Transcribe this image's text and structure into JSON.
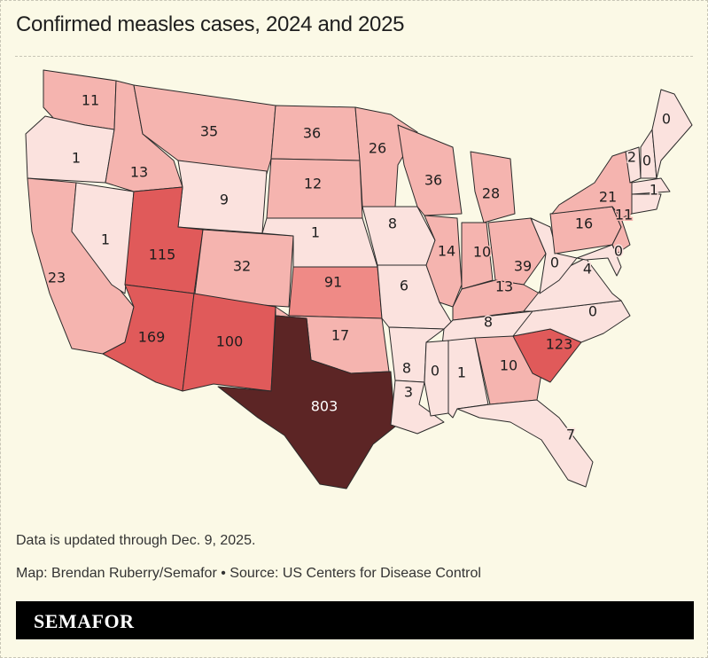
{
  "title": "Confirmed measles cases, 2024 and 2025",
  "note": "Data is updated through Dec. 9, 2025.",
  "credit": "Map: Brendan Ruberry/Semafor • Source: US Centers for Disease Control",
  "logo": "SEMAFOR",
  "colors": {
    "background": "#fbf9e6",
    "scale": [
      "#fbe2de",
      "#f5b4af",
      "#ef8a86",
      "#e05a5a",
      "#5c2525"
    ]
  },
  "states": [
    {
      "name": "Washington",
      "value": "11"
    },
    {
      "name": "Oregon",
      "value": "1"
    },
    {
      "name": "California",
      "value": "23"
    },
    {
      "name": "Nevada",
      "value": "1"
    },
    {
      "name": "Idaho",
      "value": "13"
    },
    {
      "name": "Montana",
      "value": "35"
    },
    {
      "name": "Wyoming",
      "value": "9"
    },
    {
      "name": "Utah",
      "value": "115"
    },
    {
      "name": "Colorado",
      "value": "32"
    },
    {
      "name": "Arizona",
      "value": "169"
    },
    {
      "name": "New Mexico",
      "value": "100"
    },
    {
      "name": "North Dakota",
      "value": "36"
    },
    {
      "name": "South Dakota",
      "value": "12"
    },
    {
      "name": "Nebraska",
      "value": "1"
    },
    {
      "name": "Kansas",
      "value": "91"
    },
    {
      "name": "Oklahoma",
      "value": "17"
    },
    {
      "name": "Texas",
      "value": "803"
    },
    {
      "name": "Minnesota",
      "value": "26"
    },
    {
      "name": "Iowa",
      "value": "8"
    },
    {
      "name": "Missouri",
      "value": "6"
    },
    {
      "name": "Arkansas",
      "value": "8"
    },
    {
      "name": "Louisiana",
      "value": "3"
    },
    {
      "name": "Wisconsin",
      "value": "36"
    },
    {
      "name": "Illinois",
      "value": "14"
    },
    {
      "name": "Michigan",
      "value": "28"
    },
    {
      "name": "Indiana",
      "value": "10"
    },
    {
      "name": "Ohio",
      "value": "39"
    },
    {
      "name": "Kentucky",
      "value": "13"
    },
    {
      "name": "Tennessee",
      "value": "8"
    },
    {
      "name": "Mississippi",
      "value": "0"
    },
    {
      "name": "Alabama",
      "value": "1"
    },
    {
      "name": "Georgia",
      "value": "10"
    },
    {
      "name": "Florida",
      "value": "7"
    },
    {
      "name": "South Carolina",
      "value": "123"
    },
    {
      "name": "North Carolina",
      "value": "0"
    },
    {
      "name": "Virginia",
      "value": "4"
    },
    {
      "name": "West Virginia",
      "value": "0"
    },
    {
      "name": "Pennsylvania",
      "value": "16"
    },
    {
      "name": "New York",
      "value": "21"
    },
    {
      "name": "New Jersey",
      "value": "11"
    },
    {
      "name": "Maryland",
      "value": "0"
    },
    {
      "name": "Vermont",
      "value": "2"
    },
    {
      "name": "New Hampshire",
      "value": "0"
    },
    {
      "name": "Maine",
      "value": "0"
    },
    {
      "name": "Massachusetts",
      "value": "1"
    }
  ]
}
